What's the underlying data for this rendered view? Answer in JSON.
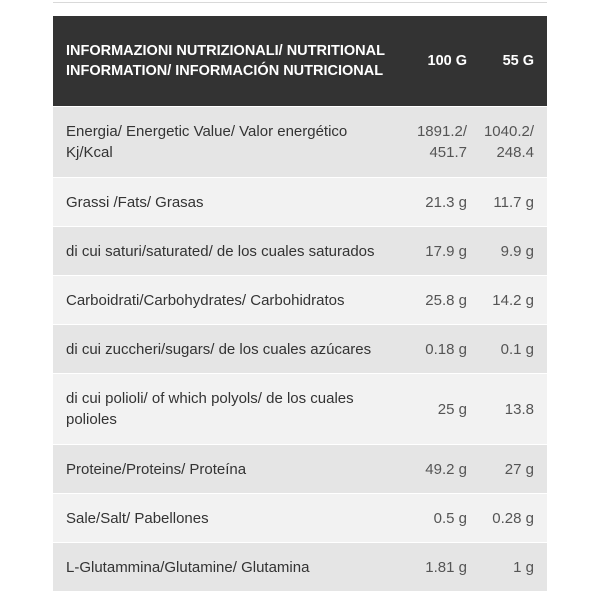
{
  "table": {
    "header": {
      "label": "INFORMAZIONI NUTRIZIONALI/ NUTRITIONAL INFORMATION/ INFORMACIÓN NUTRICIONAL",
      "col_100": "100 G",
      "col_55": "55 G"
    },
    "rows": [
      {
        "label": "Energia/ Energetic Value/ Valor energético Kj/Kcal",
        "v100": "1891.2/ 451.7",
        "v55": "1040.2/ 248.4"
      },
      {
        "label": "Grassi /Fats/ Grasas",
        "v100": "21.3 g",
        "v55": "11.7 g"
      },
      {
        "label": "di cui saturi/saturated/ de los cuales saturados",
        "v100": "17.9 g",
        "v55": "9.9 g"
      },
      {
        "label": "Carboidrati/Carbohydrates/ Carbohidratos",
        "v100": "25.8 g",
        "v55": "14.2 g"
      },
      {
        "label": "di cui zuccheri/sugars/ de los cuales azúcares",
        "v100": "0.18 g",
        "v55": "0.1 g"
      },
      {
        "label": "di cui polioli/ of which polyols/ de los cuales polioles",
        "v100": "25 g",
        "v55": "13.8"
      },
      {
        "label": "Proteine/Proteins/ Proteína",
        "v100": "49.2 g",
        "v55": "27 g"
      },
      {
        "label": "Sale/Salt/ Pabellones",
        "v100": "0.5 g",
        "v55": "0.28 g"
      },
      {
        "label": "L-Glutammina/Glutamine/ Glutamina",
        "v100": "1.81 g",
        "v55": "1 g"
      }
    ]
  },
  "colors": {
    "header_bg": "#333333",
    "row_odd": "#e5e5e5",
    "row_even": "#f2f2f2",
    "text": "#333333"
  }
}
